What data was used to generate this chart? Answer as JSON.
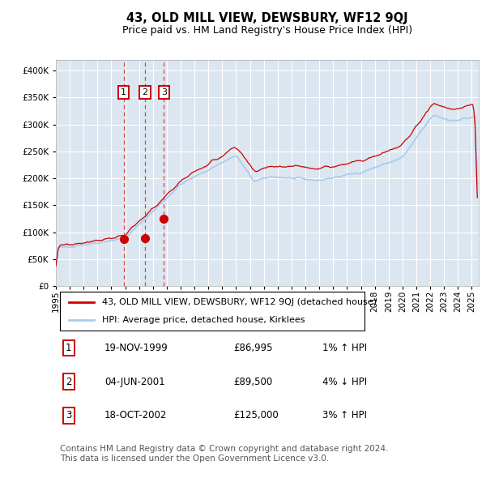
{
  "title": "43, OLD MILL VIEW, DEWSBURY, WF12 9QJ",
  "subtitle": "Price paid vs. HM Land Registry's House Price Index (HPI)",
  "xlim_start": 1995.0,
  "xlim_end": 2025.5,
  "ylim": [
    0,
    420000
  ],
  "yticks": [
    0,
    50000,
    100000,
    150000,
    200000,
    250000,
    300000,
    350000,
    400000
  ],
  "background_color": "#dce6f0",
  "line_color_red": "#cc0000",
  "line_color_blue": "#aaccee",
  "grid_color": "#ffffff",
  "vline_color": "#dd4444",
  "marker_color": "#cc0000",
  "sale_dates": [
    1999.88,
    2001.42,
    2002.79
  ],
  "sale_prices": [
    86995,
    89500,
    125000
  ],
  "sale_labels": [
    "1",
    "2",
    "3"
  ],
  "legend_red_label": "43, OLD MILL VIEW, DEWSBURY, WF12 9QJ (detached house)",
  "legend_blue_label": "HPI: Average price, detached house, Kirklees",
  "table_rows": [
    [
      "1",
      "19-NOV-1999",
      "£86,995",
      "1% ↑ HPI"
    ],
    [
      "2",
      "04-JUN-2001",
      "£89,500",
      "4% ↓ HPI"
    ],
    [
      "3",
      "18-OCT-2002",
      "£125,000",
      "3% ↑ HPI"
    ]
  ],
  "footer_text": "Contains HM Land Registry data © Crown copyright and database right 2024.\nThis data is licensed under the Open Government Licence v3.0.",
  "title_fontsize": 10.5,
  "subtitle_fontsize": 9,
  "tick_fontsize": 7.5,
  "legend_fontsize": 8,
  "table_fontsize": 8.5,
  "footer_fontsize": 7.5
}
